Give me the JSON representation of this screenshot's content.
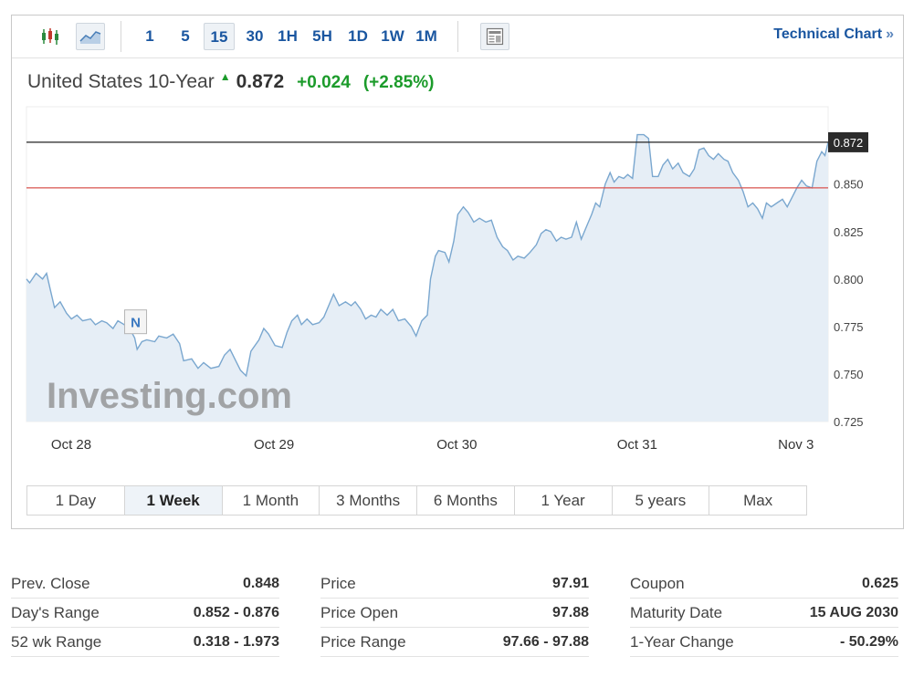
{
  "toolbar": {
    "intervals": [
      "1",
      "5",
      "15",
      "30",
      "1H",
      "5H",
      "1D",
      "1W",
      "1M"
    ],
    "active_interval": "15",
    "tech_link": "Technical Chart",
    "tech_chevron": "»"
  },
  "quote": {
    "name": "United States 10-Year",
    "price": "0.872",
    "change": "+0.024",
    "change_pct": "(+2.85%)",
    "direction_icon": "up-arrow-icon",
    "colors": {
      "up": "#1c9b2b",
      "line": "#7aa7cf",
      "area": "#e6eef6",
      "prev_close_line": "#d9534f",
      "current_line": "#222222"
    }
  },
  "chart_data": {
    "type": "area",
    "title": "United States 10-Year",
    "x_ticks": [
      "Oct 28",
      "Oct 29",
      "Oct 30",
      "Oct 31",
      "Nov 3"
    ],
    "y_ticks": [
      "0.725",
      "0.750",
      "0.775",
      "0.800",
      "0.825",
      "0.850"
    ],
    "ylim": [
      0.725,
      0.883
    ],
    "x_range": [
      0,
      100
    ],
    "current_value": 0.872,
    "current_label": "0.872",
    "prev_close": 0.848,
    "event_marker": {
      "label": "N",
      "x": 13.5,
      "y": 0.7775
    },
    "watermark": "Investing.com",
    "series": [
      {
        "points": [
          [
            0,
            0.8
          ],
          [
            0.4,
            0.798
          ],
          [
            1.2,
            0.803
          ],
          [
            2,
            0.8
          ],
          [
            2.5,
            0.803
          ],
          [
            3,
            0.794
          ],
          [
            3.5,
            0.785
          ],
          [
            4.2,
            0.788
          ],
          [
            5,
            0.782
          ],
          [
            5.6,
            0.779
          ],
          [
            6.3,
            0.781
          ],
          [
            7,
            0.778
          ],
          [
            8,
            0.779
          ],
          [
            8.6,
            0.776
          ],
          [
            9.4,
            0.778
          ],
          [
            10,
            0.777
          ],
          [
            10.8,
            0.774
          ],
          [
            11.4,
            0.778
          ],
          [
            12.2,
            0.776
          ],
          [
            13,
            0.773
          ],
          [
            13.5,
            0.769
          ],
          [
            13.8,
            0.763
          ],
          [
            14.4,
            0.767
          ],
          [
            15,
            0.768
          ],
          [
            16,
            0.767
          ],
          [
            16.5,
            0.77
          ],
          [
            17.5,
            0.769
          ],
          [
            18.3,
            0.771
          ],
          [
            19.1,
            0.766
          ],
          [
            19.6,
            0.757
          ],
          [
            20.6,
            0.758
          ],
          [
            21.4,
            0.753
          ],
          [
            22.1,
            0.756
          ],
          [
            23,
            0.753
          ],
          [
            24,
            0.754
          ],
          [
            24.7,
            0.76
          ],
          [
            25.4,
            0.763
          ],
          [
            26.1,
            0.757
          ],
          [
            26.7,
            0.752
          ],
          [
            27.4,
            0.749
          ],
          [
            28,
            0.762
          ],
          [
            29,
            0.768
          ],
          [
            29.6,
            0.774
          ],
          [
            30.2,
            0.771
          ],
          [
            31,
            0.765
          ],
          [
            31.9,
            0.764
          ],
          [
            32.5,
            0.772
          ],
          [
            33.1,
            0.778
          ],
          [
            33.8,
            0.781
          ],
          [
            34.3,
            0.776
          ],
          [
            35,
            0.779
          ],
          [
            35.7,
            0.776
          ],
          [
            36.5,
            0.777
          ],
          [
            37.1,
            0.78
          ],
          [
            37.8,
            0.787
          ],
          [
            38.3,
            0.792
          ],
          [
            39,
            0.786
          ],
          [
            39.8,
            0.788
          ],
          [
            40.5,
            0.786
          ],
          [
            41,
            0.788
          ],
          [
            41.7,
            0.784
          ],
          [
            42.3,
            0.779
          ],
          [
            43,
            0.781
          ],
          [
            43.6,
            0.78
          ],
          [
            44.2,
            0.784
          ],
          [
            45,
            0.781
          ],
          [
            45.7,
            0.784
          ],
          [
            46.4,
            0.778
          ],
          [
            47.2,
            0.779
          ],
          [
            48,
            0.775
          ],
          [
            48.6,
            0.77
          ],
          [
            49.3,
            0.778
          ],
          [
            50,
            0.781
          ],
          [
            50.4,
            0.8
          ],
          [
            51,
            0.812
          ],
          [
            51.4,
            0.815
          ],
          [
            52.2,
            0.814
          ],
          [
            52.7,
            0.809
          ],
          [
            53.3,
            0.82
          ],
          [
            53.8,
            0.834
          ],
          [
            54.5,
            0.838
          ],
          [
            55.1,
            0.835
          ],
          [
            55.8,
            0.83
          ],
          [
            56.5,
            0.832
          ],
          [
            57.3,
            0.83
          ],
          [
            58,
            0.831
          ],
          [
            58.7,
            0.822
          ],
          [
            59.4,
            0.817
          ],
          [
            60,
            0.815
          ],
          [
            60.7,
            0.81
          ],
          [
            61.3,
            0.812
          ],
          [
            62.1,
            0.811
          ],
          [
            62.8,
            0.814
          ],
          [
            63.6,
            0.818
          ],
          [
            64.2,
            0.824
          ],
          [
            64.8,
            0.826
          ],
          [
            65.4,
            0.825
          ],
          [
            66.1,
            0.82
          ],
          [
            66.7,
            0.822
          ],
          [
            67.3,
            0.821
          ],
          [
            68,
            0.822
          ],
          [
            68.6,
            0.83
          ],
          [
            69.2,
            0.821
          ],
          [
            69.9,
            0.828
          ],
          [
            70.5,
            0.834
          ],
          [
            71,
            0.84
          ],
          [
            71.5,
            0.838
          ],
          [
            72.2,
            0.85
          ],
          [
            72.8,
            0.856
          ],
          [
            73.3,
            0.851
          ],
          [
            73.9,
            0.854
          ],
          [
            74.5,
            0.853
          ],
          [
            75,
            0.855
          ],
          [
            75.6,
            0.853
          ],
          [
            76.2,
            0.876
          ],
          [
            77,
            0.876
          ],
          [
            77.6,
            0.874
          ],
          [
            78.1,
            0.854
          ],
          [
            78.8,
            0.854
          ],
          [
            79.4,
            0.86
          ],
          [
            80,
            0.863
          ],
          [
            80.6,
            0.858
          ],
          [
            81.3,
            0.861
          ],
          [
            81.9,
            0.856
          ],
          [
            82.7,
            0.854
          ],
          [
            83.3,
            0.858
          ],
          [
            83.9,
            0.868
          ],
          [
            84.5,
            0.869
          ],
          [
            85.1,
            0.865
          ],
          [
            85.7,
            0.863
          ],
          [
            86.3,
            0.866
          ],
          [
            87,
            0.863
          ],
          [
            87.5,
            0.862
          ],
          [
            88.1,
            0.856
          ],
          [
            88.8,
            0.852
          ],
          [
            89.4,
            0.846
          ],
          [
            90,
            0.838
          ],
          [
            90.6,
            0.84
          ],
          [
            91.2,
            0.837
          ],
          [
            91.8,
            0.832
          ],
          [
            92.3,
            0.84
          ],
          [
            92.9,
            0.838
          ],
          [
            93.6,
            0.84
          ],
          [
            94.3,
            0.842
          ],
          [
            94.9,
            0.838
          ],
          [
            95.5,
            0.843
          ],
          [
            96.1,
            0.848
          ],
          [
            96.7,
            0.852
          ],
          [
            97.3,
            0.849
          ],
          [
            98,
            0.848
          ],
          [
            98.6,
            0.862
          ],
          [
            99.2,
            0.867
          ],
          [
            99.6,
            0.865
          ],
          [
            100,
            0.872
          ]
        ]
      }
    ]
  },
  "ranges": {
    "items": [
      "1 Day",
      "1 Week",
      "1 Month",
      "3 Months",
      "6 Months",
      "1 Year",
      "5 years",
      "Max"
    ],
    "active": "1 Week"
  },
  "stats": {
    "col1": [
      {
        "label": "Prev. Close",
        "value": "0.848"
      },
      {
        "label": "Day's Range",
        "value": "0.852 - 0.876"
      },
      {
        "label": "52 wk Range",
        "value": "0.318 - 1.973"
      }
    ],
    "col2": [
      {
        "label": "Price",
        "value": "97.91"
      },
      {
        "label": "Price Open",
        "value": "97.88"
      },
      {
        "label": "Price Range",
        "value": "97.66 - 97.88"
      }
    ],
    "col3": [
      {
        "label": "Coupon",
        "value": "0.625"
      },
      {
        "label": "Maturity Date",
        "value": "15 AUG 2030"
      },
      {
        "label": "1-Year Change",
        "value": "- 50.29%"
      }
    ]
  }
}
